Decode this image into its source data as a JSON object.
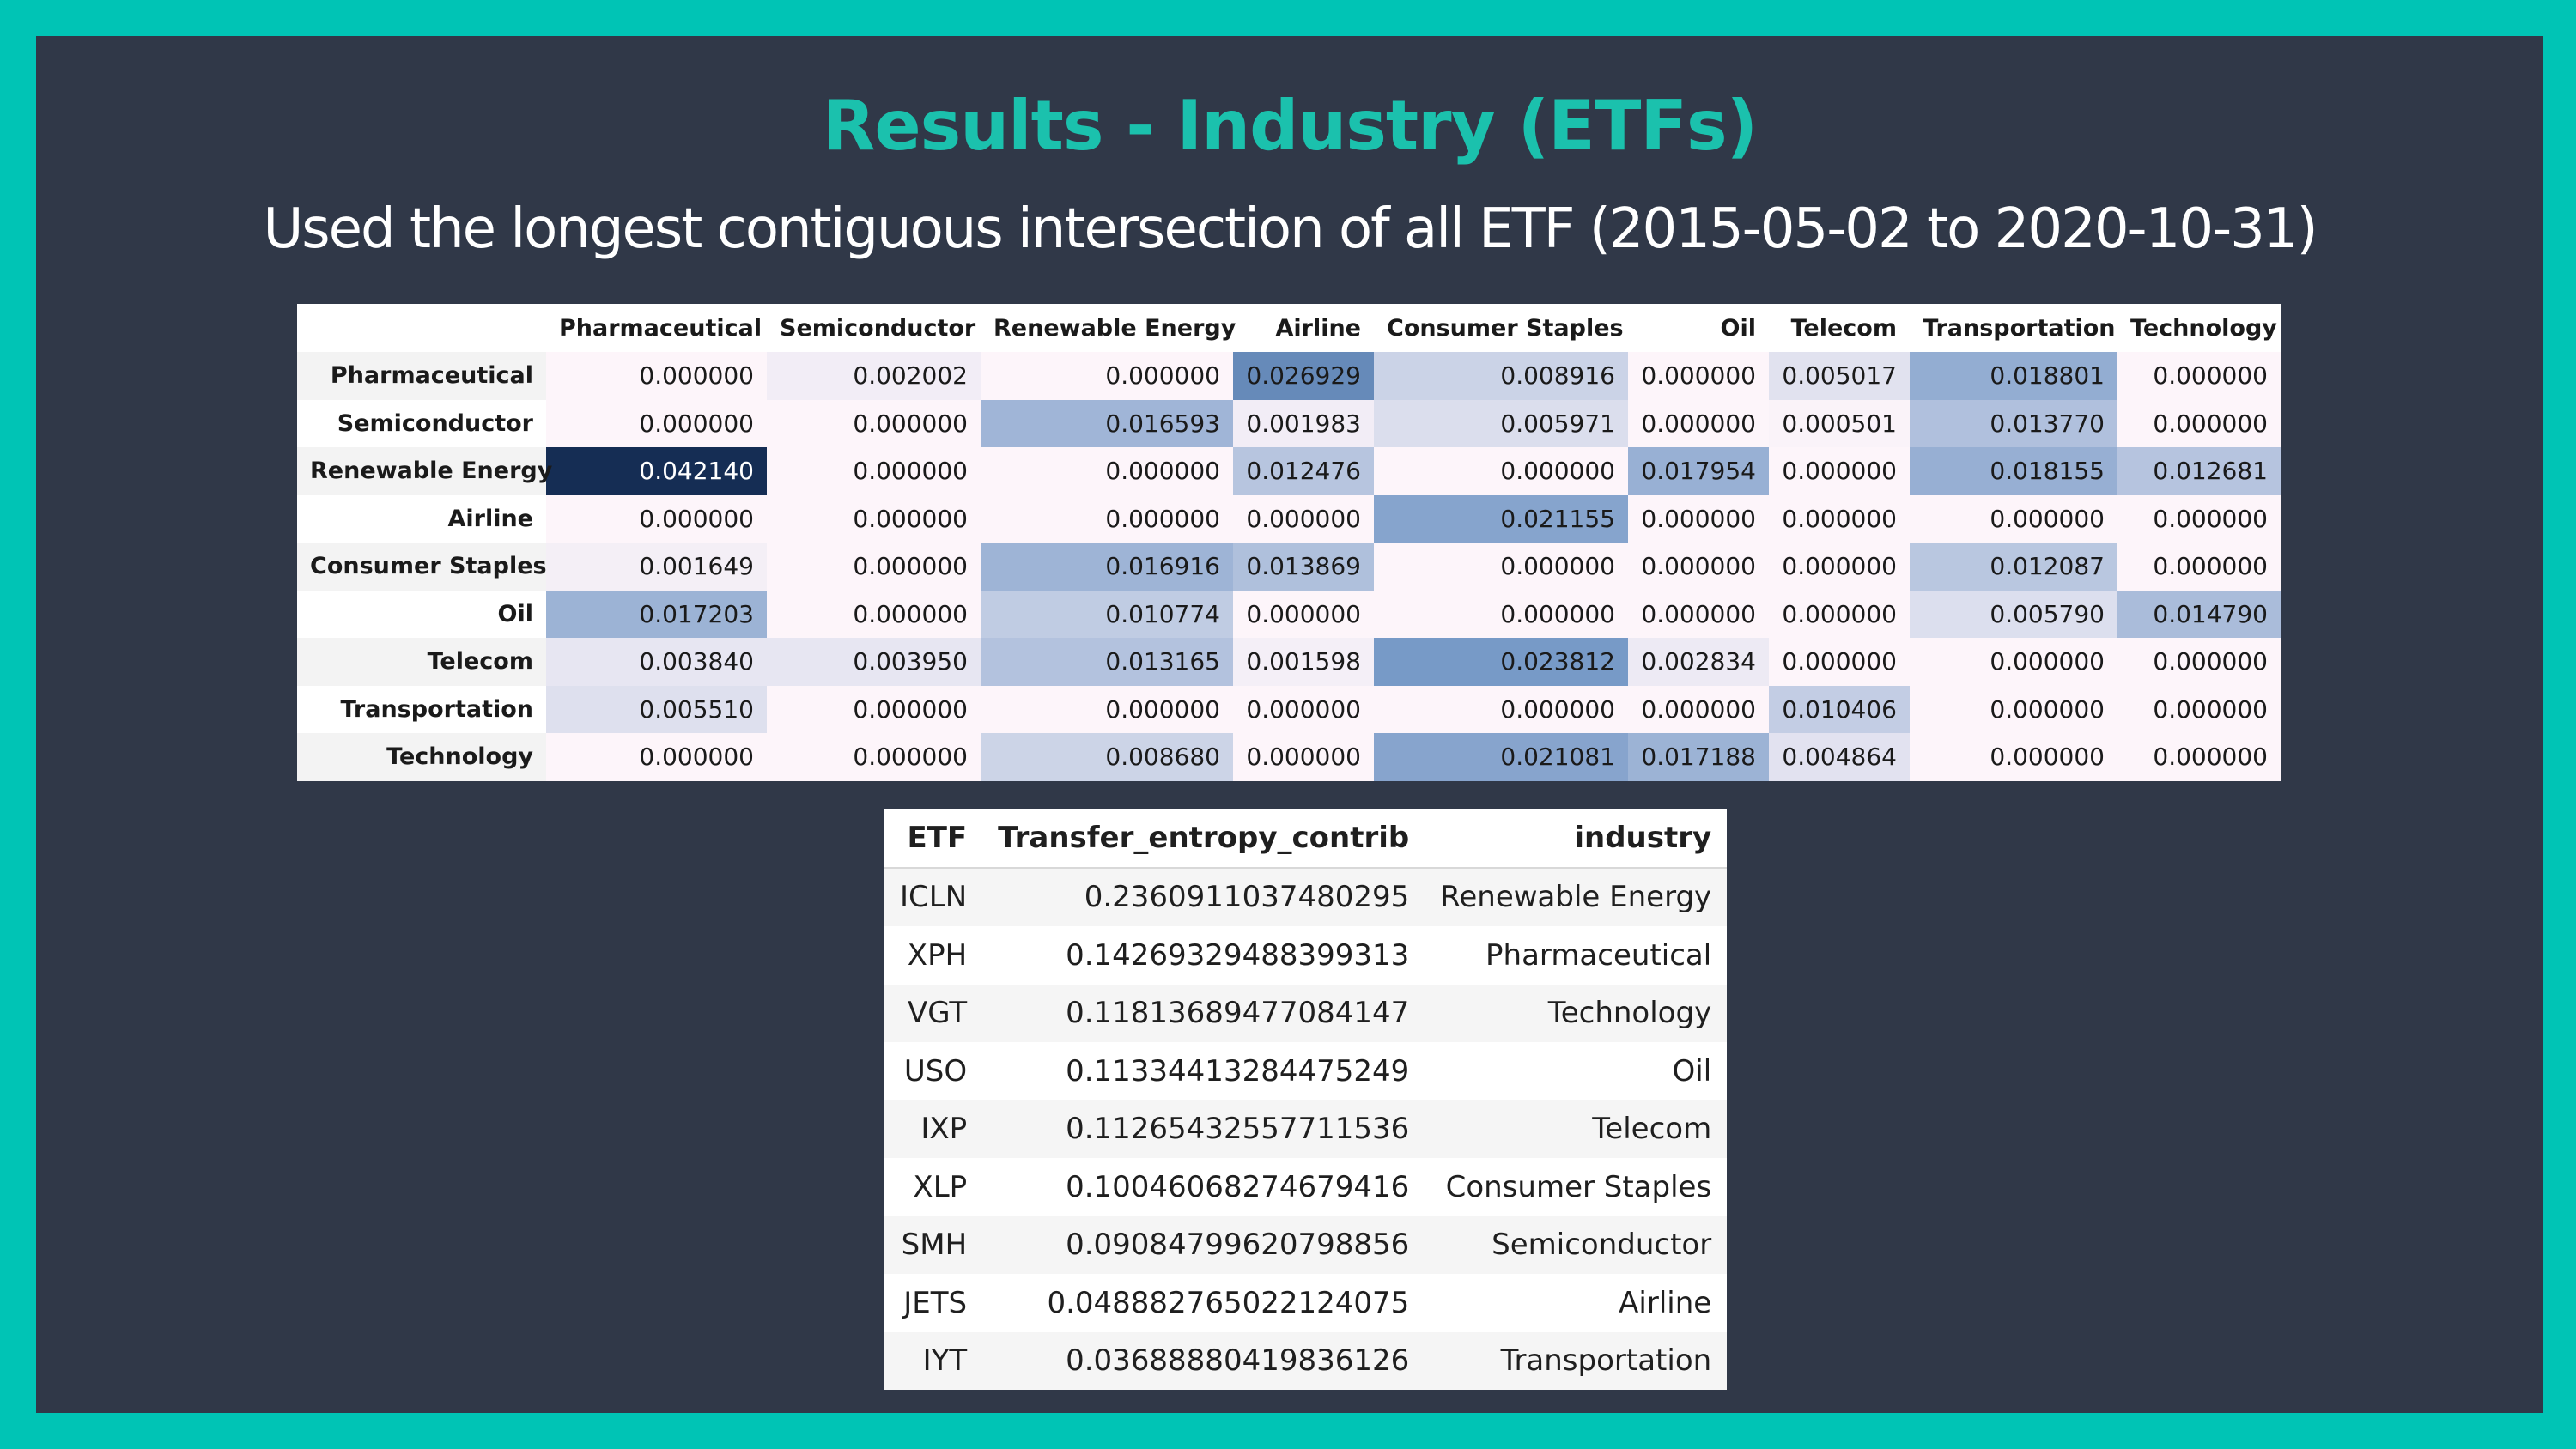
{
  "slide": {
    "title": "Results - Industry (ETFs)",
    "subtitle": "Used the longest contiguous intersection of all ETF (2015-05-02 to 2020-10-31)"
  },
  "heatmap": {
    "columns": [
      "Pharmaceutical",
      "Semiconductor",
      "Renewable Energy",
      "Airline",
      "Consumer Staples",
      "Oil",
      "Telecom",
      "Transportation",
      "Technology"
    ],
    "rows": [
      {
        "label": "Pharmaceutical",
        "values": [
          "0.000000",
          "0.002002",
          "0.000000",
          "0.026929",
          "0.008916",
          "0.000000",
          "0.005017",
          "0.018801",
          "0.000000"
        ]
      },
      {
        "label": "Semiconductor",
        "values": [
          "0.000000",
          "0.000000",
          "0.016593",
          "0.001983",
          "0.005971",
          "0.000000",
          "0.000501",
          "0.013770",
          "0.000000"
        ]
      },
      {
        "label": "Renewable Energy",
        "values": [
          "0.042140",
          "0.000000",
          "0.000000",
          "0.012476",
          "0.000000",
          "0.017954",
          "0.000000",
          "0.018155",
          "0.012681"
        ]
      },
      {
        "label": "Airline",
        "values": [
          "0.000000",
          "0.000000",
          "0.000000",
          "0.000000",
          "0.021155",
          "0.000000",
          "0.000000",
          "0.000000",
          "0.000000"
        ]
      },
      {
        "label": "Consumer Staples",
        "values": [
          "0.001649",
          "0.000000",
          "0.016916",
          "0.013869",
          "0.000000",
          "0.000000",
          "0.000000",
          "0.012087",
          "0.000000"
        ]
      },
      {
        "label": "Oil",
        "values": [
          "0.017203",
          "0.000000",
          "0.010774",
          "0.000000",
          "0.000000",
          "0.000000",
          "0.000000",
          "0.005790",
          "0.014790"
        ]
      },
      {
        "label": "Telecom",
        "values": [
          "0.003840",
          "0.003950",
          "0.013165",
          "0.001598",
          "0.023812",
          "0.002834",
          "0.000000",
          "0.000000",
          "0.000000"
        ]
      },
      {
        "label": "Transportation",
        "values": [
          "0.005510",
          "0.000000",
          "0.000000",
          "0.000000",
          "0.000000",
          "0.000000",
          "0.010406",
          "0.000000",
          "0.000000"
        ]
      },
      {
        "label": "Technology",
        "values": [
          "0.000000",
          "0.000000",
          "0.008680",
          "0.000000",
          "0.021081",
          "0.017188",
          "0.004864",
          "0.000000",
          "0.000000"
        ]
      }
    ]
  },
  "entropy_table": {
    "headers": [
      "ETF",
      "Transfer_entropy_contrib",
      "industry"
    ],
    "rows": [
      [
        "ICLN",
        "0.2360911037480295",
        "Renewable Energy"
      ],
      [
        "XPH",
        "0.14269329488399313",
        "Pharmaceutical"
      ],
      [
        "VGT",
        "0.11813689477084147",
        "Technology"
      ],
      [
        "USO",
        "0.11334413284475249",
        "Oil"
      ],
      [
        "IXP",
        "0.11265432557711536",
        "Telecom"
      ],
      [
        "XLP",
        "0.10046068274679416",
        "Consumer Staples"
      ],
      [
        "SMH",
        "0.09084799620798856",
        "Semiconductor"
      ],
      [
        "JETS",
        "0.048882765022124075",
        "Airline"
      ],
      [
        "IYT",
        "0.03688880419836126",
        "Transportation"
      ]
    ]
  }
}
